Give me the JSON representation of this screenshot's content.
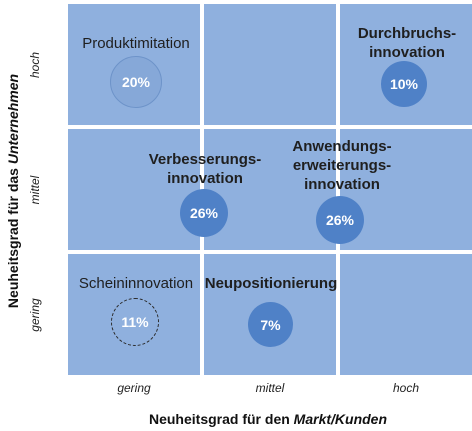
{
  "cells": {
    "produktimitation": {
      "label": "Produktimitation",
      "value": "20%"
    },
    "durchbruch": {
      "label_1": "Durchbruchs-",
      "label_2": "innovation",
      "value": "10%"
    },
    "verbesserung": {
      "label_1": "Verbesserungs-",
      "label_2": "innovation",
      "value": "26%"
    },
    "anwendung": {
      "label_1": "Anwendungs-",
      "label_2": "erweiterungs-",
      "label_3": "innovation",
      "value": "26%"
    },
    "schein": {
      "label": "Scheininnovation",
      "value": "11%"
    },
    "neupositionierung": {
      "label": "Neupositionierung",
      "value": "7%"
    }
  },
  "x_axis": {
    "ticks": [
      "gering",
      "mittel",
      "hoch"
    ],
    "title_prefix": "Neuheitsgrad für den ",
    "title_emphasis": "Markt/Kunden"
  },
  "y_axis": {
    "ticks": [
      "hoch",
      "mittel",
      "gering"
    ],
    "title_prefix": "Neuheitsgrad für das ",
    "title_emphasis": "Unternehmen"
  },
  "colors": {
    "cell": "#8fb0de",
    "bubble_solid": "#4f81c7",
    "bubble_light": "#86a8d8"
  }
}
